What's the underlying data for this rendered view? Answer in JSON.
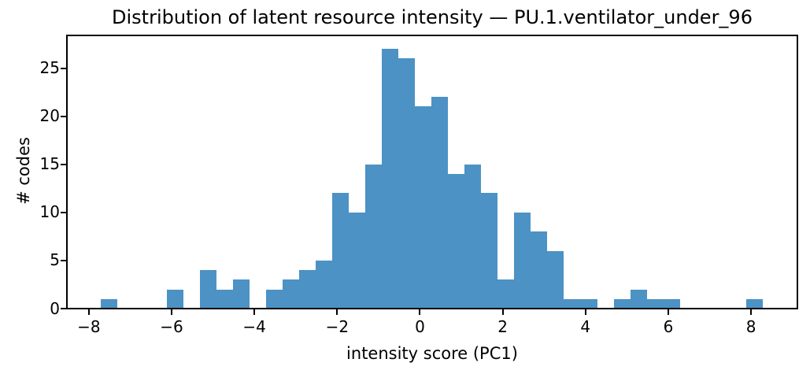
{
  "chart_data": {
    "type": "bar",
    "subtype": "histogram",
    "title": "Distribution of latent resource intensity — PU.1.ventilator_under_96",
    "xlabel": "intensity score (PC1)",
    "ylabel": "# codes",
    "bin_start": -7.72,
    "bin_width": 0.4,
    "counts": [
      1,
      0,
      0,
      0,
      2,
      0,
      4,
      2,
      3,
      0,
      2,
      3,
      4,
      5,
      12,
      10,
      15,
      27,
      26,
      21,
      22,
      14,
      15,
      12,
      3,
      10,
      8,
      6,
      1,
      1,
      0,
      1,
      2,
      1,
      1,
      0,
      0,
      0,
      0,
      1
    ],
    "total_count": 235,
    "xlim": [
      -8.53,
      9.12
    ],
    "ylim": [
      0,
      28.4
    ],
    "xtick_values": [
      -8,
      -6,
      -4,
      -2,
      0,
      2,
      4,
      6,
      8
    ],
    "xtick_labels": [
      "−8",
      "−6",
      "−4",
      "−2",
      "0",
      "2",
      "4",
      "6",
      "8"
    ],
    "ytick_values": [
      0,
      5,
      10,
      15,
      20,
      25
    ],
    "ytick_labels": [
      "0",
      "5",
      "10",
      "15",
      "20",
      "25"
    ],
    "grid": false,
    "legend": null,
    "colors": {
      "bar": "#4C92C4",
      "axis": "#000000",
      "text": "#000000",
      "background": "#ffffff"
    }
  }
}
